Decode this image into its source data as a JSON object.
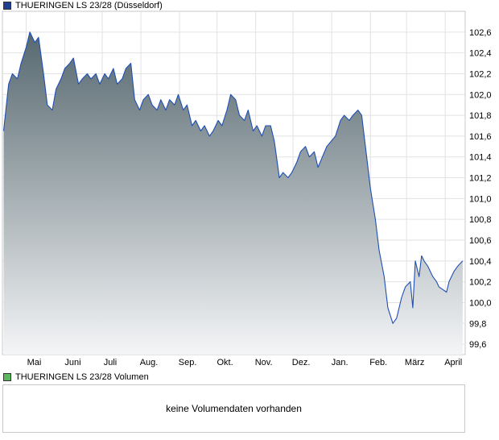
{
  "price_legend": {
    "label": "THUERINGEN   LS 23/28 (Düsseldorf)",
    "color": "#1f3f94"
  },
  "volume_legend": {
    "label": "THUERINGEN   LS 23/28 Volumen",
    "color": "#5cb85c"
  },
  "volume_panel": {
    "message": "keine Volumendaten vorhanden"
  },
  "colors": {
    "line": "#1f4fb4",
    "fill_top": "#56686f",
    "fill_bottom": "#f4f5f7",
    "grid": "#e2e2e2"
  },
  "chart_data": {
    "type": "area",
    "title": "THUERINGEN   LS 23/28 (Düsseldorf)",
    "xlabel": "",
    "ylabel": "",
    "ylim": [
      99.5,
      102.8
    ],
    "y_ticks": [
      "99,6",
      "99,8",
      "100,0",
      "100,2",
      "100,4",
      "100,6",
      "100,8",
      "101,0",
      "101,2",
      "101,4",
      "101,6",
      "101,8",
      "102,0",
      "102,2",
      "102,4",
      "102,6"
    ],
    "x_ticks": [
      "Mai",
      "Juni",
      "Juli",
      "Aug.",
      "Sep.",
      "Okt.",
      "Nov.",
      "Dez.",
      "Jan.",
      "Feb.",
      "März",
      "April"
    ],
    "grid": true,
    "series": [
      {
        "name": "THUERINGEN   LS 23/28 (Düsseldorf)",
        "x": [
          "2023-04-13",
          "2023-04-17",
          "2023-04-20",
          "2023-04-24",
          "2023-04-27",
          "2023-05-01",
          "2023-05-04",
          "2023-05-08",
          "2023-05-11",
          "2023-05-15",
          "2023-05-18",
          "2023-05-22",
          "2023-05-25",
          "2023-05-29",
          "2023-06-01",
          "2023-06-05",
          "2023-06-08",
          "2023-06-12",
          "2023-06-15",
          "2023-06-19",
          "2023-06-22",
          "2023-06-26",
          "2023-06-29",
          "2023-07-03",
          "2023-07-06",
          "2023-07-10",
          "2023-07-13",
          "2023-07-17",
          "2023-07-20",
          "2023-07-24",
          "2023-07-27",
          "2023-07-31",
          "2023-08-03",
          "2023-08-07",
          "2023-08-10",
          "2023-08-14",
          "2023-08-17",
          "2023-08-21",
          "2023-08-24",
          "2023-08-28",
          "2023-08-31",
          "2023-09-04",
          "2023-09-07",
          "2023-09-11",
          "2023-09-14",
          "2023-09-18",
          "2023-09-21",
          "2023-09-25",
          "2023-09-28",
          "2023-10-02",
          "2023-10-05",
          "2023-10-09",
          "2023-10-12",
          "2023-10-16",
          "2023-10-19",
          "2023-10-23",
          "2023-10-26",
          "2023-10-30",
          "2023-11-02",
          "2023-11-06",
          "2023-11-09",
          "2023-11-13",
          "2023-11-16",
          "2023-11-20",
          "2023-11-23",
          "2023-11-27",
          "2023-11-30",
          "2023-12-04",
          "2023-12-07",
          "2023-12-11",
          "2023-12-14",
          "2023-12-18",
          "2023-12-21",
          "2023-12-28",
          "2024-01-04",
          "2024-01-08",
          "2024-01-11",
          "2024-01-15",
          "2024-01-18",
          "2024-01-22",
          "2024-01-25",
          "2024-01-29",
          "2024-02-01",
          "2024-02-05",
          "2024-02-08",
          "2024-02-12",
          "2024-02-15",
          "2024-02-19",
          "2024-02-22",
          "2024-02-26",
          "2024-02-29",
          "2024-03-04",
          "2024-03-06",
          "2024-03-08",
          "2024-03-11",
          "2024-03-13",
          "2024-03-15",
          "2024-03-18",
          "2024-03-20",
          "2024-03-22",
          "2024-03-25",
          "2024-03-27",
          "2024-04-02",
          "2024-04-04",
          "2024-04-08",
          "2024-04-11",
          "2024-04-15"
        ],
        "values": [
          101.65,
          102.1,
          102.2,
          102.15,
          102.3,
          102.45,
          102.6,
          102.5,
          102.55,
          102.2,
          101.9,
          101.85,
          102.05,
          102.15,
          102.25,
          102.3,
          102.35,
          102.1,
          102.15,
          102.2,
          102.15,
          102.2,
          102.1,
          102.2,
          102.15,
          102.25,
          102.1,
          102.15,
          102.25,
          102.3,
          101.95,
          101.85,
          101.95,
          102.0,
          101.9,
          101.85,
          101.95,
          101.85,
          101.95,
          101.9,
          102.0,
          101.85,
          101.9,
          101.7,
          101.75,
          101.65,
          101.7,
          101.6,
          101.65,
          101.75,
          101.7,
          101.85,
          102.0,
          101.95,
          101.8,
          101.75,
          101.85,
          101.65,
          101.7,
          101.6,
          101.7,
          101.7,
          101.55,
          101.2,
          101.25,
          101.2,
          101.25,
          101.35,
          101.45,
          101.5,
          101.4,
          101.45,
          101.3,
          101.5,
          101.6,
          101.75,
          101.8,
          101.75,
          101.8,
          101.85,
          101.8,
          101.4,
          101.1,
          100.8,
          100.5,
          100.25,
          99.95,
          99.8,
          99.85,
          100.05,
          100.15,
          100.2,
          99.95,
          100.4,
          100.25,
          100.45,
          100.4,
          100.35,
          100.3,
          100.25,
          100.2,
          100.15,
          100.1,
          100.2,
          100.3,
          100.35,
          100.4
        ]
      }
    ]
  }
}
